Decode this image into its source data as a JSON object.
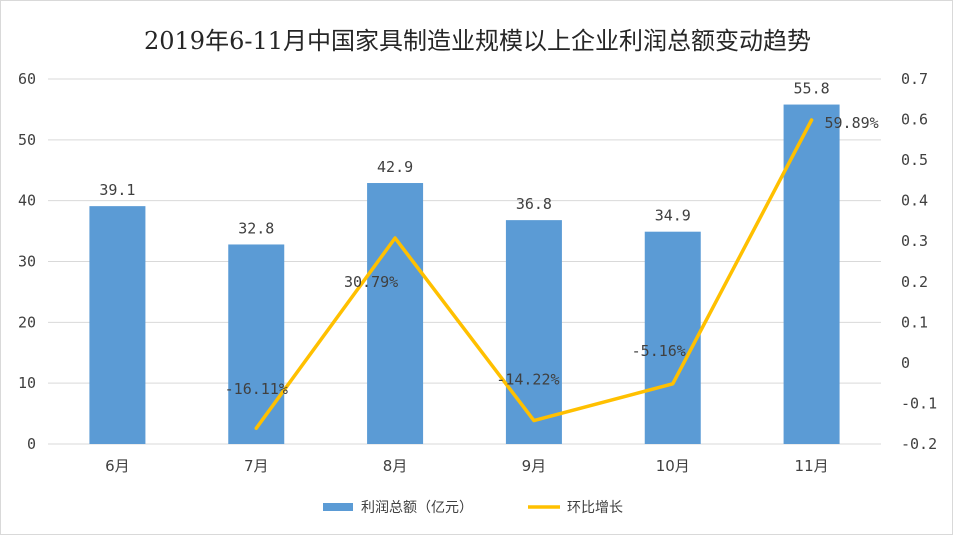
{
  "chart_data": {
    "type": "bar",
    "title": "2019年6-11月中国家具制造业规模以上企业利润总额变动趋势",
    "categories": [
      "6月",
      "7月",
      "8月",
      "9月",
      "10月",
      "11月"
    ],
    "series": [
      {
        "name": "利润总额（亿元）",
        "type": "bar",
        "axis": "left",
        "values": [
          39.1,
          32.8,
          42.9,
          36.8,
          34.9,
          55.8
        ],
        "labels": [
          "39.1",
          "32.8",
          "42.9",
          "36.8",
          "34.9",
          "55.8"
        ],
        "color": "#5b9bd5"
      },
      {
        "name": "环比增长",
        "type": "line",
        "axis": "right",
        "values": [
          null,
          -0.1611,
          0.3079,
          -0.1422,
          -0.0516,
          0.5989
        ],
        "labels": [
          "",
          "-16.11%",
          "30.79%",
          "-14.22%",
          "-5.16%",
          "59.89%"
        ],
        "color": "#ffc000"
      }
    ],
    "y_left": {
      "min": 0,
      "max": 60,
      "ticks": [
        "0",
        "10",
        "20",
        "30",
        "40",
        "50",
        "60"
      ]
    },
    "y_right": {
      "min": -0.2,
      "max": 0.7,
      "ticks": [
        "-0.2",
        "-0.1",
        "0",
        "0.1",
        "0.2",
        "0.3",
        "0.4",
        "0.5",
        "0.6",
        "0.7"
      ]
    },
    "grid": true,
    "legend_position": "bottom"
  }
}
